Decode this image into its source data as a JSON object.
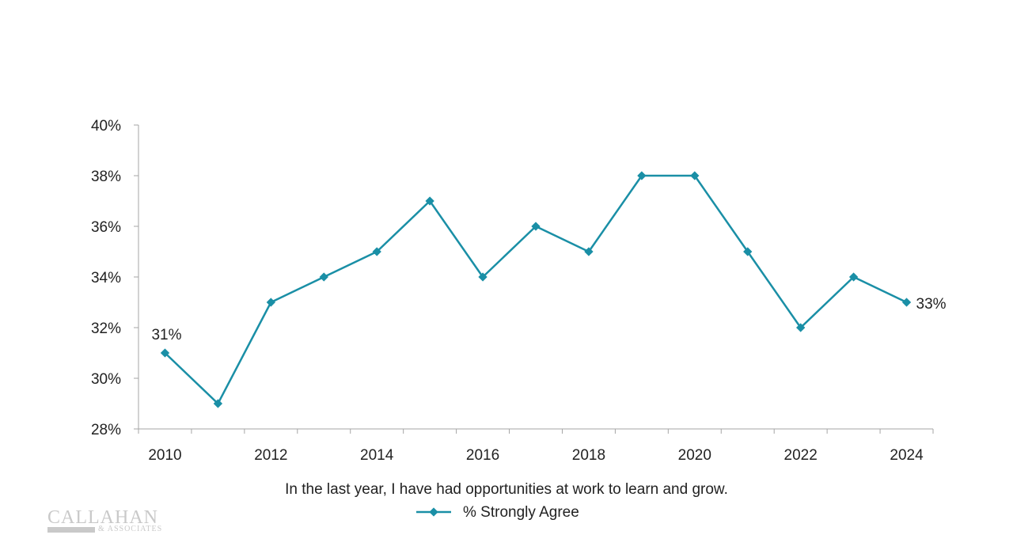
{
  "chart_data": {
    "type": "line",
    "x": [
      2010,
      2011,
      2012,
      2013,
      2014,
      2015,
      2016,
      2017,
      2018,
      2019,
      2020,
      2021,
      2022,
      2023,
      2024
    ],
    "series": [
      {
        "name": "% Strongly Agree",
        "values": [
          31,
          29,
          33,
          34,
          35,
          37,
          34,
          36,
          35,
          38,
          38,
          35,
          32,
          34,
          33
        ],
        "color": "#1a8fa6"
      }
    ],
    "xlabel": "In the last year, I have had opportunities at work to learn and grow.",
    "ylabel": "",
    "ylim": [
      28,
      40
    ],
    "yticks": [
      "28%",
      "30%",
      "32%",
      "34%",
      "36%",
      "38%",
      "40%"
    ],
    "yticks_values": [
      28,
      30,
      32,
      34,
      36,
      38,
      40
    ],
    "xticks": [
      "2010",
      "2012",
      "2014",
      "2016",
      "2018",
      "2020",
      "2022",
      "2024"
    ],
    "xticks_values": [
      2010,
      2012,
      2014,
      2016,
      2018,
      2020,
      2022,
      2024
    ],
    "annotations": [
      {
        "x": 2010,
        "text": "31%"
      },
      {
        "x": 2024,
        "text": "33%"
      }
    ],
    "legend": "bottom-center",
    "grid": false
  },
  "logo": {
    "name": "CALLAHAN",
    "sub": "& ASSOCIATES"
  }
}
